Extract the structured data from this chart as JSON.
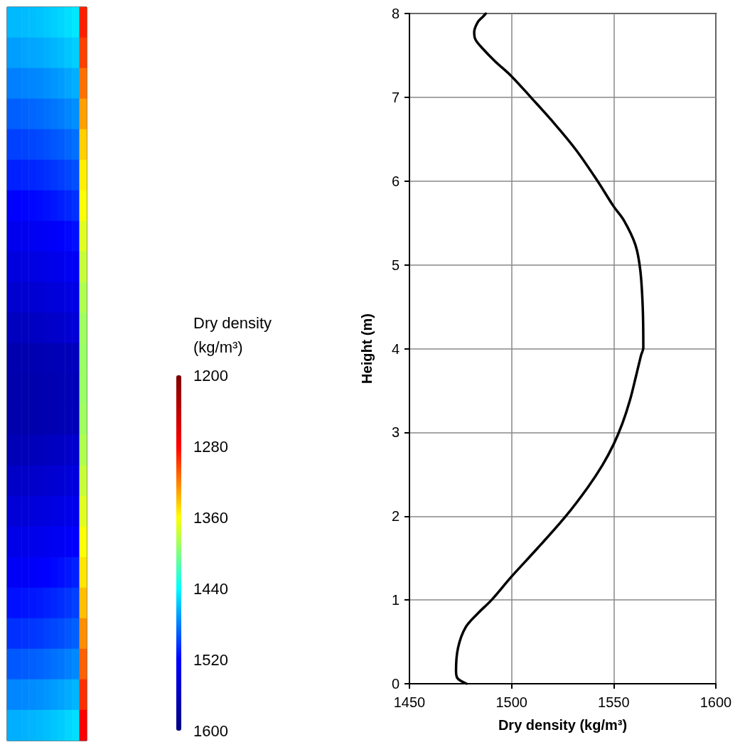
{
  "chart_data": [
    {
      "type": "heatmap",
      "clabel": "Dry density\n(kg/m³)",
      "tick_labels": false,
      "categories": [
        null,
        null,
        null,
        null,
        null,
        null,
        null,
        null,
        null,
        null,
        null
      ],
      "y_categories": [
        null,
        null,
        null,
        null,
        null,
        null,
        null,
        null,
        null,
        null,
        null,
        null,
        null,
        null,
        null,
        null,
        null,
        null,
        null,
        null,
        null,
        null,
        null,
        null
      ],
      "clim": [
        1200,
        1600
      ],
      "cticks": [
        1200,
        1280,
        1360,
        1440,
        1520,
        1600
      ],
      "cells": [
        [
          1462,
          1462,
          1461,
          1460,
          1459,
          1457,
          1455,
          1453,
          1450,
          1447,
          1290
        ],
        [
          1470,
          1470,
          1469,
          1468,
          1467,
          1465,
          1463,
          1461,
          1458,
          1455,
          1300
        ],
        [
          1480,
          1480,
          1479,
          1478,
          1477,
          1475,
          1473,
          1471,
          1468,
          1465,
          1315
        ],
        [
          1490,
          1490,
          1489,
          1488,
          1487,
          1485,
          1483,
          1481,
          1478,
          1475,
          1330
        ],
        [
          1500,
          1500,
          1499,
          1498,
          1497,
          1495,
          1493,
          1491,
          1488,
          1485,
          1345
        ],
        [
          1510,
          1510,
          1509,
          1508,
          1507,
          1505,
          1503,
          1501,
          1498,
          1495,
          1355
        ],
        [
          1520,
          1520,
          1519,
          1518,
          1517,
          1515,
          1513,
          1511,
          1508,
          1505,
          1362
        ],
        [
          1530,
          1530,
          1529,
          1528,
          1527,
          1525,
          1523,
          1521,
          1518,
          1515,
          1370
        ],
        [
          1540,
          1540,
          1539,
          1538,
          1537,
          1535,
          1533,
          1531,
          1528,
          1525,
          1378
        ],
        [
          1550,
          1550,
          1549,
          1548,
          1547,
          1545,
          1543,
          1541,
          1538,
          1535,
          1385
        ],
        [
          1560,
          1560,
          1559,
          1558,
          1557,
          1555,
          1553,
          1551,
          1548,
          1545,
          1390
        ],
        [
          1570,
          1570,
          1569,
          1569,
          1568,
          1567,
          1566,
          1565,
          1563,
          1561,
          1392
        ],
        [
          1572,
          1572,
          1571,
          1571,
          1570,
          1569,
          1568,
          1567,
          1565,
          1563,
          1392
        ],
        [
          1572,
          1572,
          1571,
          1571,
          1570,
          1569,
          1568,
          1567,
          1565,
          1563,
          1390
        ],
        [
          1565,
          1565,
          1564,
          1563,
          1562,
          1560,
          1558,
          1556,
          1553,
          1550,
          1385
        ],
        [
          1555,
          1555,
          1554,
          1553,
          1552,
          1550,
          1548,
          1546,
          1543,
          1540,
          1378
        ],
        [
          1545,
          1545,
          1544,
          1543,
          1542,
          1540,
          1538,
          1536,
          1533,
          1530,
          1370
        ],
        [
          1535,
          1535,
          1534,
          1533,
          1532,
          1530,
          1528,
          1526,
          1523,
          1520,
          1362
        ],
        [
          1525,
          1525,
          1524,
          1523,
          1522,
          1520,
          1518,
          1516,
          1513,
          1510,
          1352
        ],
        [
          1515,
          1515,
          1514,
          1513,
          1512,
          1510,
          1508,
          1506,
          1503,
          1500,
          1340
        ],
        [
          1505,
          1505,
          1504,
          1503,
          1502,
          1500,
          1498,
          1496,
          1493,
          1490,
          1325
        ],
        [
          1492,
          1492,
          1491,
          1490,
          1489,
          1487,
          1485,
          1483,
          1480,
          1477,
          1310
        ],
        [
          1478,
          1478,
          1477,
          1476,
          1475,
          1473,
          1471,
          1469,
          1466,
          1463,
          1295
        ],
        [
          1465,
          1465,
          1464,
          1463,
          1462,
          1460,
          1458,
          1456,
          1453,
          1450,
          1280
        ]
      ]
    },
    {
      "type": "line",
      "xlabel": "Dry density (kg/m³)",
      "ylabel": "Height (m)",
      "xlim": [
        1450,
        1600
      ],
      "xticks": [
        1450,
        1500,
        1550,
        1600
      ],
      "ylim": [
        0,
        8
      ],
      "yticks": [
        0,
        1,
        2,
        3,
        4,
        5,
        6,
        7,
        8
      ],
      "grid": true,
      "marker": "none",
      "line_style": "solid",
      "series": [
        {
          "color": "#000000",
          "x": [
            1478.0,
            1473.4,
            1472.8,
            1473.8,
            1477.4,
            1483.5,
            1490.2,
            1500,
            1512.8,
            1526.2,
            1537.2,
            1544.5,
            1550,
            1554.3,
            1557.9,
            1561,
            1563.4,
            1564.5,
            1564.2,
            1563.0,
            1560.6,
            1555.0,
            1549.9,
            1542.1,
            1531.3,
            1519.4,
            1509.8,
            1500,
            1491.9,
            1485.9,
            1482.3,
            1481.7,
            1483.5,
            1485.9,
            1487.4
          ],
          "values": [
            0,
            0.07,
            0.16,
            0.43,
            0.67,
            0.84,
            1.0,
            1.28,
            1.62,
            1.99,
            2.34,
            2.61,
            2.86,
            3.11,
            3.38,
            3.68,
            3.92,
            4.01,
            4.5,
            4.94,
            5.24,
            5.53,
            5.7,
            6.0,
            6.38,
            6.73,
            6.99,
            7.25,
            7.43,
            7.58,
            7.69,
            7.78,
            7.9,
            7.96,
            8.0
          ]
        }
      ]
    }
  ]
}
